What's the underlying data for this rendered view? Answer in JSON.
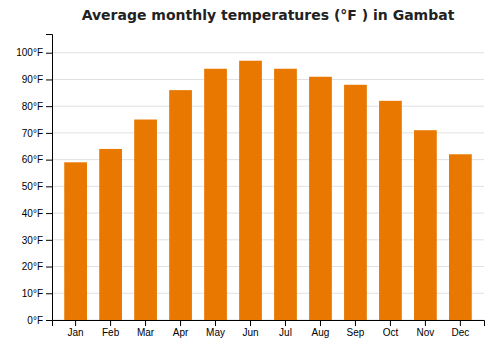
{
  "chart_data": {
    "type": "bar",
    "title": "Average monthly temperatures (°F ) in Gambat",
    "categories": [
      "Jan",
      "Feb",
      "Mar",
      "Apr",
      "May",
      "Jun",
      "Jul",
      "Aug",
      "Sep",
      "Oct",
      "Nov",
      "Dec"
    ],
    "values": [
      59,
      64,
      75,
      86,
      94,
      97,
      94,
      91,
      88,
      82,
      71,
      62
    ],
    "color": "#E87800",
    "ylim": [
      0,
      107
    ],
    "yticks": [
      {
        "value": 0,
        "label": "0°F"
      },
      {
        "value": 10,
        "label": "10°F"
      },
      {
        "value": 20,
        "label": "20°F"
      },
      {
        "value": 30,
        "label": "30°F"
      },
      {
        "value": 40,
        "label": "40°F"
      },
      {
        "value": 50,
        "label": "50°F"
      },
      {
        "value": 60,
        "label": "60°F"
      },
      {
        "value": 70,
        "label": "70°F"
      },
      {
        "value": 80,
        "label": "80°F"
      },
      {
        "value": 90,
        "label": "90°F"
      },
      {
        "value": 100,
        "label": "100°F"
      }
    ],
    "grid": true
  }
}
